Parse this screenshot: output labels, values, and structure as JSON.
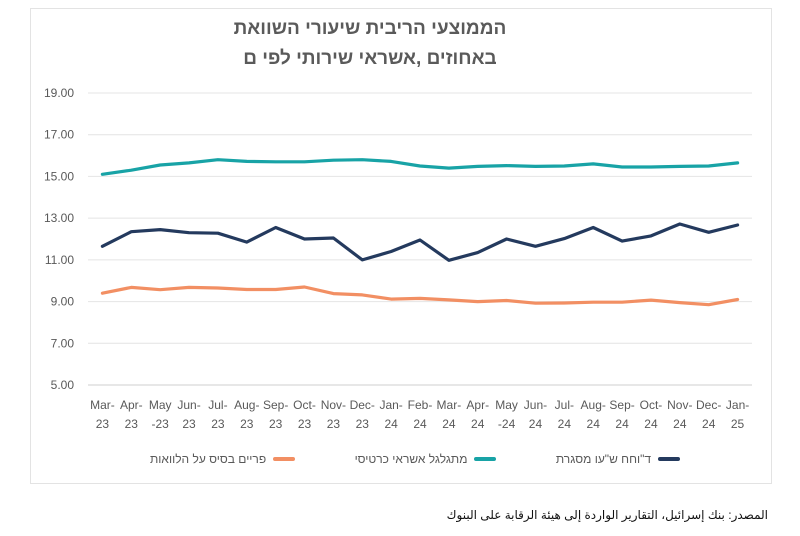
{
  "chart_data": {
    "type": "line",
    "title_lines": [
      "הממוצעי הריבית שיעורי השוואת",
      "באחוזים ,אשראי שירותי לפי ם"
    ],
    "xlabel": "",
    "ylabel": "",
    "ylim": [
      5,
      19
    ],
    "y_ticks": [
      "5.00",
      "7.00",
      "9.00",
      "11.00",
      "13.00",
      "15.00",
      "17.00",
      "19.00"
    ],
    "y_tick_values": [
      5,
      7,
      9,
      11,
      13,
      15,
      17,
      19
    ],
    "grid": "horizontal",
    "legend_position": "bottom",
    "categories": [
      [
        "Mar-",
        "23"
      ],
      [
        "Apr-",
        "23"
      ],
      [
        "May",
        "-23"
      ],
      [
        "Jun-",
        "23"
      ],
      [
        "Jul-",
        "23"
      ],
      [
        "Aug-",
        "23"
      ],
      [
        "Sep-",
        "23"
      ],
      [
        "Oct-",
        "23"
      ],
      [
        "Nov-",
        "23"
      ],
      [
        "Dec-",
        "23"
      ],
      [
        "Jan-",
        "24"
      ],
      [
        "Feb-",
        "24"
      ],
      [
        "Mar-",
        "24"
      ],
      [
        "Apr-",
        "24"
      ],
      [
        "May",
        "-24"
      ],
      [
        "Jun-",
        "24"
      ],
      [
        "Jul-",
        "24"
      ],
      [
        "Aug-",
        "24"
      ],
      [
        "Sep-",
        "24"
      ],
      [
        "Oct-",
        "24"
      ],
      [
        "Nov-",
        "24"
      ],
      [
        "Dec-",
        "24"
      ],
      [
        "Jan-",
        "25"
      ]
    ],
    "series": [
      {
        "name": "ד\"וחח ש\"עו מסגרת",
        "color": "#243a5e",
        "values": [
          11.65,
          12.35,
          12.45,
          12.3,
          12.28,
          11.85,
          12.55,
          12.0,
          12.05,
          11.0,
          11.4,
          11.95,
          10.98,
          11.35,
          12.0,
          11.65,
          12.02,
          12.55,
          11.9,
          12.15,
          12.72,
          12.32,
          12.67
        ]
      },
      {
        "name": "מתגלגל אשראי כרטיסי",
        "color": "#18a3a6",
        "values": [
          15.1,
          15.3,
          15.55,
          15.65,
          15.8,
          15.72,
          15.7,
          15.7,
          15.78,
          15.8,
          15.72,
          15.5,
          15.4,
          15.48,
          15.52,
          15.48,
          15.5,
          15.6,
          15.45,
          15.45,
          15.48,
          15.5,
          15.65
        ]
      },
      {
        "name": "פריים בסיס על הלוואות",
        "color": "#f28f63",
        "values": [
          9.4,
          9.68,
          9.57,
          9.68,
          9.65,
          9.58,
          9.58,
          9.7,
          9.38,
          9.32,
          9.12,
          9.15,
          9.08,
          9.0,
          9.05,
          8.92,
          8.93,
          8.97,
          8.97,
          9.07,
          8.95,
          8.85,
          9.1
        ]
      }
    ]
  },
  "source_note": "المصدر: بنك إسرائيل، التقارير الواردة إلى هيئة الرقابة على البنوك"
}
